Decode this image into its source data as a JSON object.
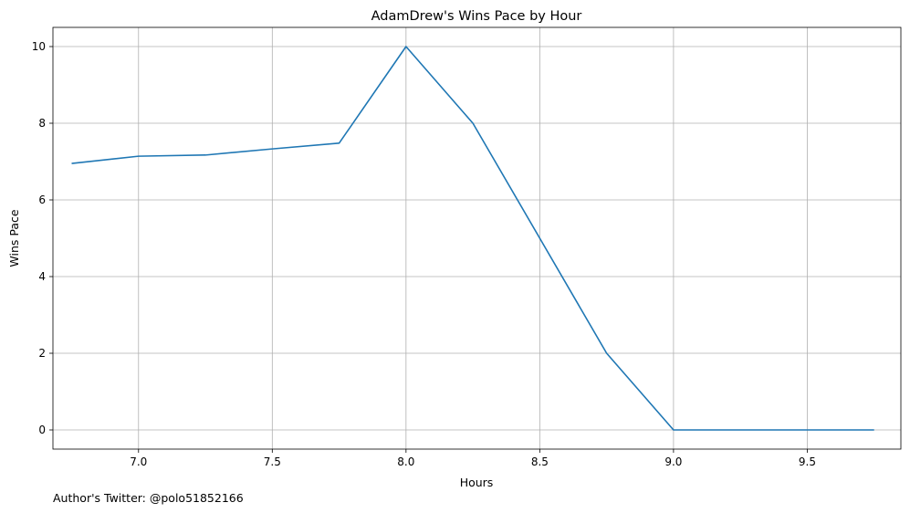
{
  "chart_data": {
    "type": "line",
    "title": "AdamDrew's Wins Pace by Hour",
    "xlabel": "Hours",
    "ylabel": "Wins Pace",
    "xlim": [
      6.68,
      9.85
    ],
    "ylim": [
      -0.5,
      10.5
    ],
    "xticks": [
      7.0,
      7.5,
      8.0,
      8.5,
      9.0,
      9.5
    ],
    "xtick_labels": [
      "7.0",
      "7.5",
      "8.0",
      "8.5",
      "9.0",
      "9.5"
    ],
    "yticks": [
      0,
      2,
      4,
      6,
      8,
      10
    ],
    "ytick_labels": [
      "0",
      "2",
      "4",
      "6",
      "8",
      "10"
    ],
    "grid": true,
    "color": "#1f77b4",
    "x": [
      6.75,
      7.0,
      7.25,
      7.5,
      7.75,
      8.0,
      8.25,
      8.5,
      8.75,
      9.0,
      9.25,
      9.5,
      9.75
    ],
    "y": [
      6.95,
      7.14,
      7.17,
      7.33,
      7.48,
      10.0,
      8.0,
      5.0,
      2.0,
      0.0,
      0.0,
      0.0,
      0.0
    ]
  },
  "footer": {
    "note": "Author's Twitter: @polo51852166"
  }
}
